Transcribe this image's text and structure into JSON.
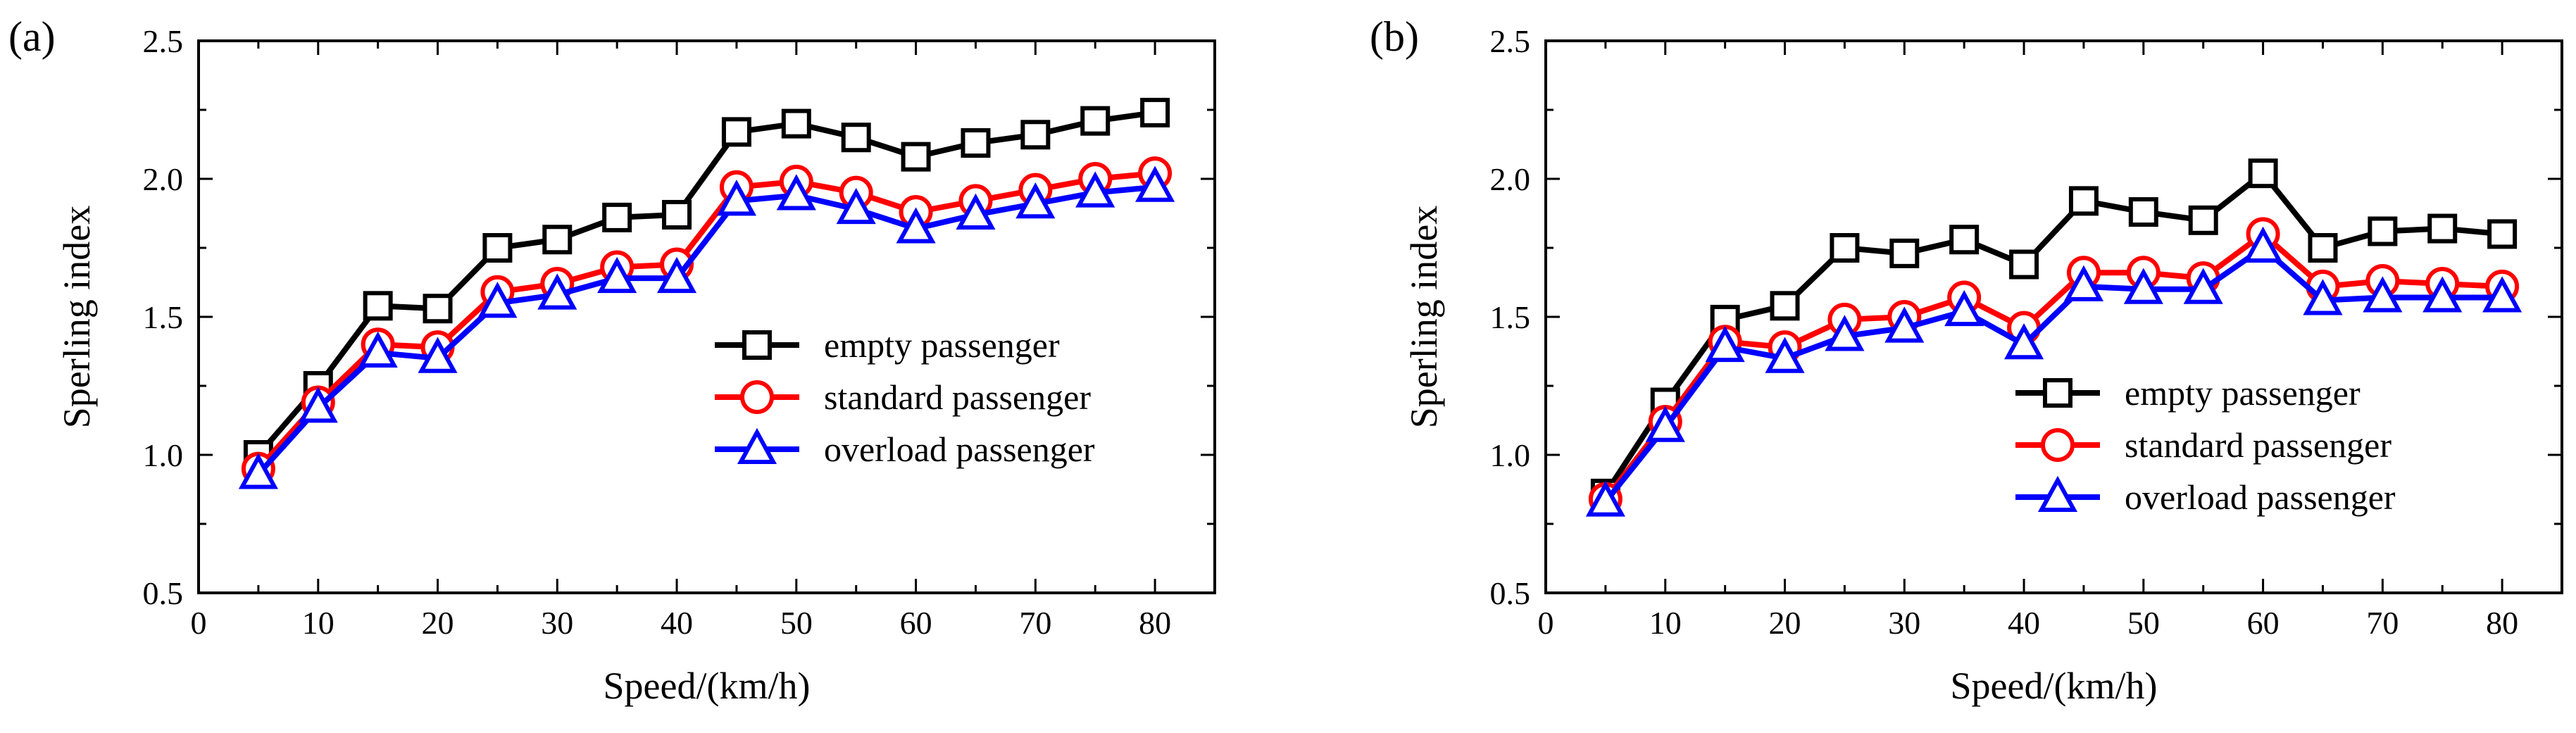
{
  "chart_data": [
    {
      "type": "line",
      "panel_label": "(a)",
      "xlabel": "Speed/(km/h)",
      "ylabel": "Sperling index",
      "xlim": [
        0,
        85
      ],
      "ylim": [
        0.5,
        2.5
      ],
      "xticks": [
        "0",
        "10",
        "20",
        "30",
        "40",
        "50",
        "60",
        "70",
        "80"
      ],
      "yticks": [
        "0.5",
        "1.0",
        "1.5",
        "2.0",
        "2.5"
      ],
      "x": [
        5,
        10,
        15,
        20,
        25,
        30,
        35,
        40,
        45,
        50,
        55,
        60,
        65,
        70,
        75,
        80
      ],
      "legend_position": "lower-right",
      "series": [
        {
          "name": "empty passenger",
          "color": "#000000",
          "marker": "square",
          "values": [
            1.0,
            1.25,
            1.54,
            1.53,
            1.75,
            1.78,
            1.86,
            1.87,
            2.17,
            2.2,
            2.15,
            2.08,
            2.13,
            2.16,
            2.21,
            2.24
          ]
        },
        {
          "name": "standard passenger",
          "color": "#ff0000",
          "marker": "circle",
          "values": [
            0.95,
            1.19,
            1.4,
            1.39,
            1.59,
            1.62,
            1.68,
            1.69,
            1.97,
            1.99,
            1.95,
            1.88,
            1.92,
            1.96,
            2.0,
            2.02
          ]
        },
        {
          "name": "overload passenger",
          "color": "#0000ff",
          "marker": "triangle",
          "values": [
            0.93,
            1.17,
            1.37,
            1.35,
            1.55,
            1.58,
            1.64,
            1.64,
            1.92,
            1.94,
            1.89,
            1.82,
            1.87,
            1.91,
            1.95,
            1.97
          ]
        }
      ]
    },
    {
      "type": "line",
      "panel_label": "(b)",
      "xlabel": "Speed/(km/h)",
      "ylabel": "Sperling index",
      "xlim": [
        0,
        85
      ],
      "ylim": [
        0.5,
        2.5
      ],
      "xticks": [
        "0",
        "10",
        "20",
        "30",
        "40",
        "50",
        "60",
        "70",
        "80"
      ],
      "yticks": [
        "0.5",
        "1.0",
        "1.5",
        "2.0",
        "2.5"
      ],
      "x": [
        5,
        10,
        15,
        20,
        25,
        30,
        35,
        40,
        45,
        50,
        55,
        60,
        65,
        70,
        75,
        80
      ],
      "legend_position": "lower-right",
      "series": [
        {
          "name": "empty passenger",
          "color": "#000000",
          "marker": "square",
          "values": [
            0.86,
            1.19,
            1.49,
            1.54,
            1.75,
            1.73,
            1.78,
            1.69,
            1.92,
            1.88,
            1.85,
            2.02,
            1.75,
            1.81,
            1.82,
            1.8
          ]
        },
        {
          "name": "standard passenger",
          "color": "#ff0000",
          "marker": "circle",
          "values": [
            0.84,
            1.12,
            1.41,
            1.39,
            1.49,
            1.5,
            1.57,
            1.46,
            1.66,
            1.66,
            1.64,
            1.8,
            1.61,
            1.63,
            1.62,
            1.61
          ]
        },
        {
          "name": "overload passenger",
          "color": "#0000ff",
          "marker": "triangle",
          "values": [
            0.83,
            1.1,
            1.39,
            1.35,
            1.43,
            1.46,
            1.52,
            1.4,
            1.61,
            1.6,
            1.6,
            1.75,
            1.56,
            1.57,
            1.57,
            1.57
          ]
        }
      ]
    }
  ]
}
